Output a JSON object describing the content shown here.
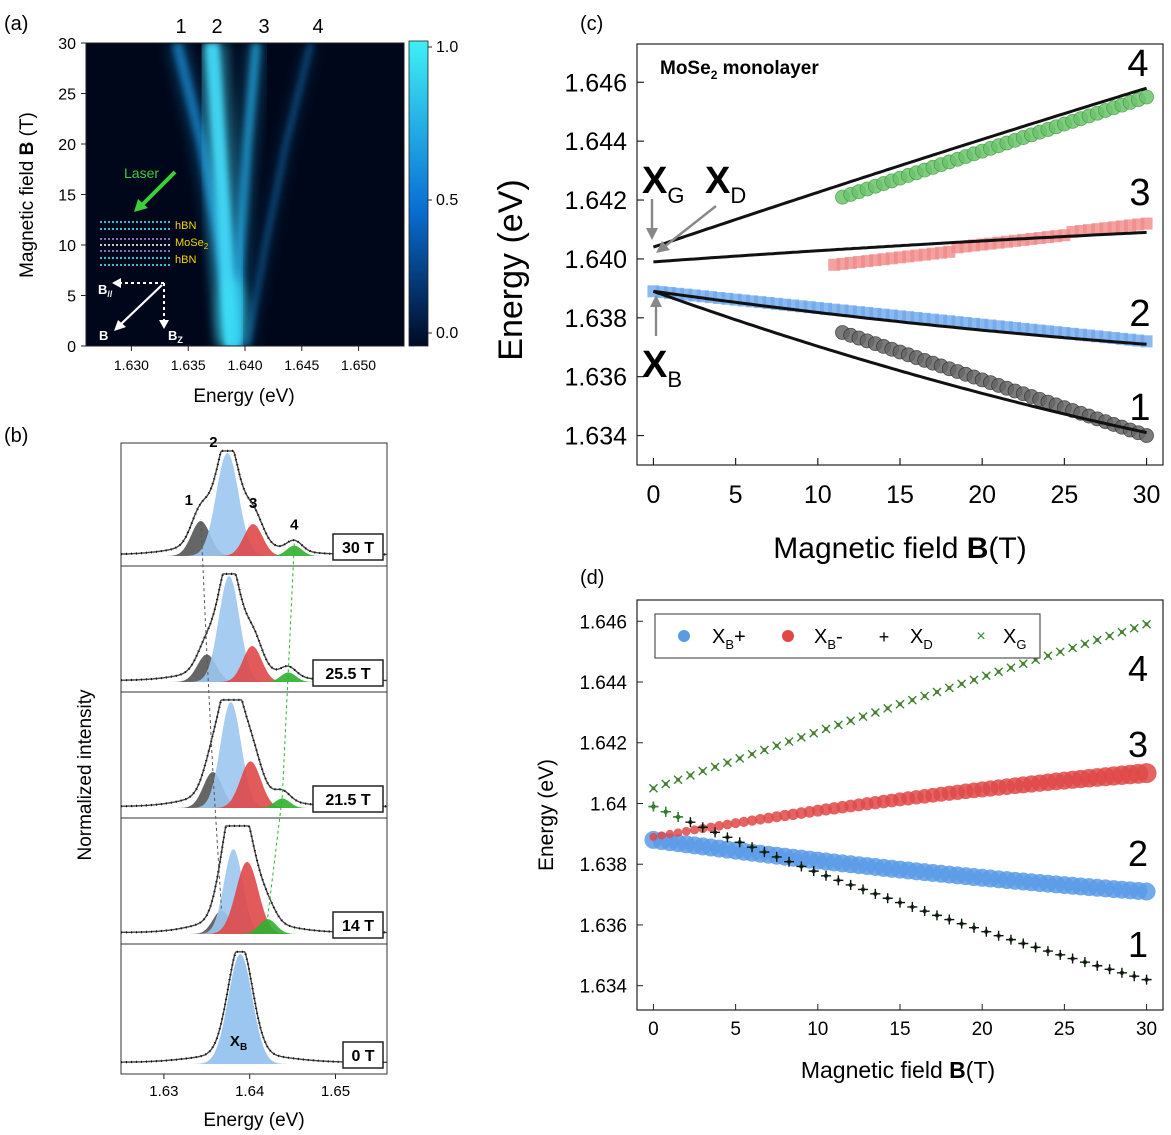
{
  "panels": {
    "a": {
      "label": "(a)",
      "xlabel": "Energy (eV)",
      "ylabel_text": "Magnetic field",
      "ylabel_bold": "B",
      "ylabel_unit": "(T)",
      "xticks": [
        "1.630",
        "1.635",
        "1.640",
        "1.645",
        "1.650"
      ],
      "yticks": [
        "0",
        "5",
        "10",
        "15",
        "20",
        "25",
        "30"
      ],
      "top_labels": [
        "1",
        "2",
        "3",
        "4"
      ],
      "colorbar_ticks": [
        "1.0",
        "0.5",
        "0.0"
      ],
      "inset": {
        "laser": "Laser",
        "layers": [
          "hBN",
          "MoSe",
          "hBN"
        ],
        "mose_sub": "2",
        "b_par": "B",
        "b_par_sub": "//",
        "b": "B",
        "b_z": "B",
        "b_z_sub": "Z"
      }
    },
    "b": {
      "label": "(b)",
      "xlabel": "Energy (eV)",
      "ylabel": "Normalized intensity",
      "xticks": [
        "1.63",
        "1.64",
        "1.65"
      ],
      "peak_labels": [
        "1",
        "2",
        "3",
        "4"
      ],
      "xb_label": "X",
      "xb_sub": "B",
      "fields": [
        "30 T",
        "25.5 T",
        "21.5 T",
        "14 T",
        "0 T"
      ]
    },
    "c": {
      "label": "(c)",
      "title": "MoSe",
      "title_sub": "2",
      "title_tail": " monolayer",
      "ylabel": "Energy (eV)",
      "xlabel_text": "Magnetic field ",
      "xlabel_bold": "B",
      "xlabel_unit": "(T)",
      "xticks": [
        "0",
        "5",
        "10",
        "15",
        "20",
        "25",
        "30"
      ],
      "yticks": [
        "1.634",
        "1.636",
        "1.638",
        "1.640",
        "1.642",
        "1.644",
        "1.646"
      ],
      "branch_labels": [
        "1",
        "2",
        "3",
        "4"
      ],
      "xg": "X",
      "xg_sub": "G",
      "xd": "X",
      "xd_sub": "D",
      "xb": "X",
      "xb_sub": "B"
    },
    "d": {
      "label": "(d)",
      "ylabel": "Energy (eV)",
      "xlabel_text": "Magnetic field ",
      "xlabel_bold": "B",
      "xlabel_unit": "(T)",
      "xticks": [
        "0",
        "5",
        "10",
        "15",
        "20",
        "25",
        "30"
      ],
      "yticks": [
        "1.634",
        "1.636",
        "1.638",
        "1.64",
        "1.642",
        "1.644",
        "1.646"
      ],
      "branch_labels": [
        "1",
        "2",
        "3",
        "4"
      ],
      "legend": [
        {
          "sym": "X",
          "sub": "B",
          "tail": "+"
        },
        {
          "sym": "X",
          "sub": "B",
          "tail": "-"
        },
        {
          "sym": "X",
          "sub": "D",
          "tail": ""
        },
        {
          "sym": "X",
          "sub": "G",
          "tail": ""
        }
      ]
    }
  },
  "colors": {
    "blue": "#5b9be6",
    "red": "#e04848",
    "green": "#4bb04b",
    "black": "#111111",
    "gray": "#555555",
    "dark_green": "#1f5e1f",
    "cmap_low": "#00071a",
    "cmap_mid": "#0a6fd4",
    "cmap_high": "#3ff0f5"
  },
  "chart_data": [
    {
      "panel": "a",
      "type": "heatmap",
      "xlabel": "Energy (eV)",
      "ylabel": "Magnetic field B (T)",
      "xlim": [
        1.626,
        1.654
      ],
      "ylim": [
        0,
        30
      ],
      "colorbar_range": [
        0.0,
        1.0
      ],
      "branches": [
        {
          "name": "1",
          "points": [
            [
              0,
              1.6389
            ],
            [
              10,
              1.6378
            ],
            [
              20,
              1.6362
            ],
            [
              30,
              1.634
            ]
          ]
        },
        {
          "name": "2",
          "points": [
            [
              0,
              1.6389
            ],
            [
              10,
              1.6383
            ],
            [
              20,
              1.6377
            ],
            [
              30,
              1.6371
            ]
          ]
        },
        {
          "name": "3",
          "points": [
            [
              0,
              1.6392
            ],
            [
              10,
              1.6396
            ],
            [
              20,
              1.6402
            ],
            [
              30,
              1.641
            ]
          ]
        },
        {
          "name": "4",
          "points": [
            [
              0,
              1.6402
            ],
            [
              10,
              1.6418
            ],
            [
              20,
              1.6436
            ],
            [
              30,
              1.6458
            ]
          ]
        }
      ]
    },
    {
      "panel": "b",
      "type": "line",
      "xlabel": "Energy (eV)",
      "ylabel": "Normalized intensity",
      "xlim": [
        1.625,
        1.656
      ],
      "spectra": [
        {
          "field": "30 T",
          "peaks": [
            {
              "name": "1",
              "center": 1.6343,
              "amp": 0.34,
              "width": 0.0011
            },
            {
              "name": "2",
              "center": 1.6374,
              "amp": 1.0,
              "width": 0.0013
            },
            {
              "name": "3",
              "center": 1.6404,
              "amp": 0.31,
              "width": 0.0011
            },
            {
              "name": "4",
              "center": 1.6452,
              "amp": 0.1,
              "width": 0.0009
            }
          ]
        },
        {
          "field": "25.5 T",
          "peaks": [
            {
              "name": "1",
              "center": 1.635,
              "amp": 0.26,
              "width": 0.0011
            },
            {
              "name": "2",
              "center": 1.6376,
              "amp": 1.0,
              "width": 0.0012
            },
            {
              "name": "3",
              "center": 1.6403,
              "amp": 0.34,
              "width": 0.0011
            },
            {
              "name": "4",
              "center": 1.6445,
              "amp": 0.09,
              "width": 0.0009
            }
          ]
        },
        {
          "field": "21.5 T",
          "peaks": [
            {
              "name": "1",
              "center": 1.6357,
              "amp": 0.34,
              "width": 0.0011
            },
            {
              "name": "2",
              "center": 1.6378,
              "amp": 1.0,
              "width": 0.0012
            },
            {
              "name": "3",
              "center": 1.6401,
              "amp": 0.44,
              "width": 0.0012
            },
            {
              "name": "4",
              "center": 1.6438,
              "amp": 0.09,
              "width": 0.0009
            }
          ]
        },
        {
          "field": "14 T",
          "peaks": [
            {
              "name": "1",
              "center": 1.6367,
              "amp": 0.22,
              "width": 0.001
            },
            {
              "name": "2",
              "center": 1.6381,
              "amp": 0.8,
              "width": 0.0011
            },
            {
              "name": "3",
              "center": 1.6397,
              "amp": 0.68,
              "width": 0.0013
            },
            {
              "name": "4",
              "center": 1.6421,
              "amp": 0.14,
              "width": 0.001
            }
          ]
        },
        {
          "field": "0 T",
          "peaks": [
            {
              "name": "XB",
              "center": 1.6389,
              "amp": 1.0,
              "width": 0.0014
            }
          ]
        }
      ]
    },
    {
      "panel": "c",
      "type": "scatter",
      "xlabel": "Magnetic field B (T)",
      "ylabel": "Energy (eV)",
      "xlim": [
        -1,
        31
      ],
      "ylim": [
        1.633,
        1.6473
      ],
      "series": [
        {
          "name": "1",
          "x_range": [
            11.5,
            30
          ],
          "e0": 1.6375,
          "e1": 1.634
        },
        {
          "name": "2",
          "x_range": [
            0,
            30
          ],
          "e0": 1.6389,
          "e1": 1.6372
        },
        {
          "name": "3",
          "x_range": [
            11,
            30
          ],
          "e0": 1.6398,
          "e1": 1.641
        },
        {
          "name": "4",
          "x_range": [
            11.5,
            30
          ],
          "e0": 1.6421,
          "e1": 1.6455
        }
      ],
      "fits": [
        {
          "name": "1",
          "start": 1.6389,
          "end": 1.6341
        },
        {
          "name": "2",
          "start": 1.6389,
          "end": 1.6371
        },
        {
          "name": "3",
          "start": 1.6399,
          "end": 1.6409
        },
        {
          "name": "4",
          "start": 1.6404,
          "end": 1.6458
        }
      ]
    },
    {
      "panel": "d",
      "type": "scatter",
      "xlabel": "Magnetic field B (T)",
      "ylabel": "Energy (eV)",
      "xlim": [
        -1,
        31
      ],
      "ylim": [
        1.6332,
        1.6467
      ],
      "series": [
        {
          "name": "XB+",
          "start": 1.6388,
          "end": 1.6371
        },
        {
          "name": "XB-",
          "start": 1.6389,
          "end": 1.641
        },
        {
          "name": "XD",
          "start": 1.6399,
          "end": 1.6342
        },
        {
          "name": "XG",
          "start": 1.6405,
          "end": 1.6459
        }
      ]
    }
  ]
}
